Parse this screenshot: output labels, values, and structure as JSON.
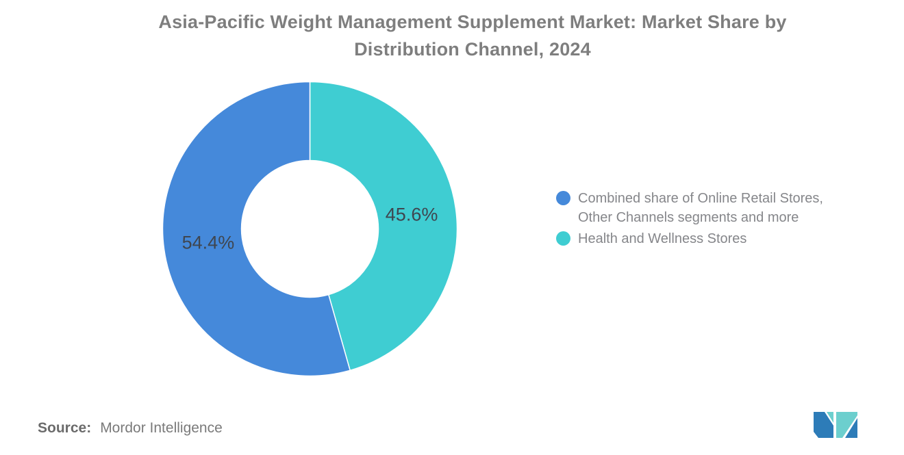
{
  "header": {
    "title_lines": [
      "Asia-Pacific Weight Management Supplement Market: Market Share by",
      "Distribution Channel, 2024"
    ],
    "title_color": "#7E7E7E"
  },
  "chart_data": {
    "type": "pie",
    "subtype": "donut",
    "title": "Asia-Pacific Weight Management Supplement Market: Market Share by Distribution Channel, 2024",
    "unit": "%",
    "start_angle_deg": 0,
    "direction": "clockwise",
    "inner_radius_ratio": 0.465,
    "series": [
      {
        "name": "Health and Wellness Stores",
        "value": 45.6,
        "data_label": "45.6%",
        "color": "#3FCDD2"
      },
      {
        "name": "Combined share of Online Retail Stores, Other Channels segments and more",
        "value": 54.4,
        "data_label": "54.4%",
        "color": "#4589DA"
      }
    ],
    "data_label_color": "#3F4650",
    "legend_position": "right",
    "legend": [
      {
        "label": "Combined share of Online Retail Stores, Other Channels segments and more",
        "color": "#4589DA"
      },
      {
        "label": "Health and Wellness Stores",
        "color": "#3FCDD2"
      }
    ]
  },
  "source": {
    "label": "Source:",
    "value": "Mordor Intelligence"
  },
  "logo": {
    "name": "Mordor Intelligence logo mark",
    "colors": {
      "blue": "#2D7CB8",
      "teal": "#6CCFCE"
    }
  }
}
